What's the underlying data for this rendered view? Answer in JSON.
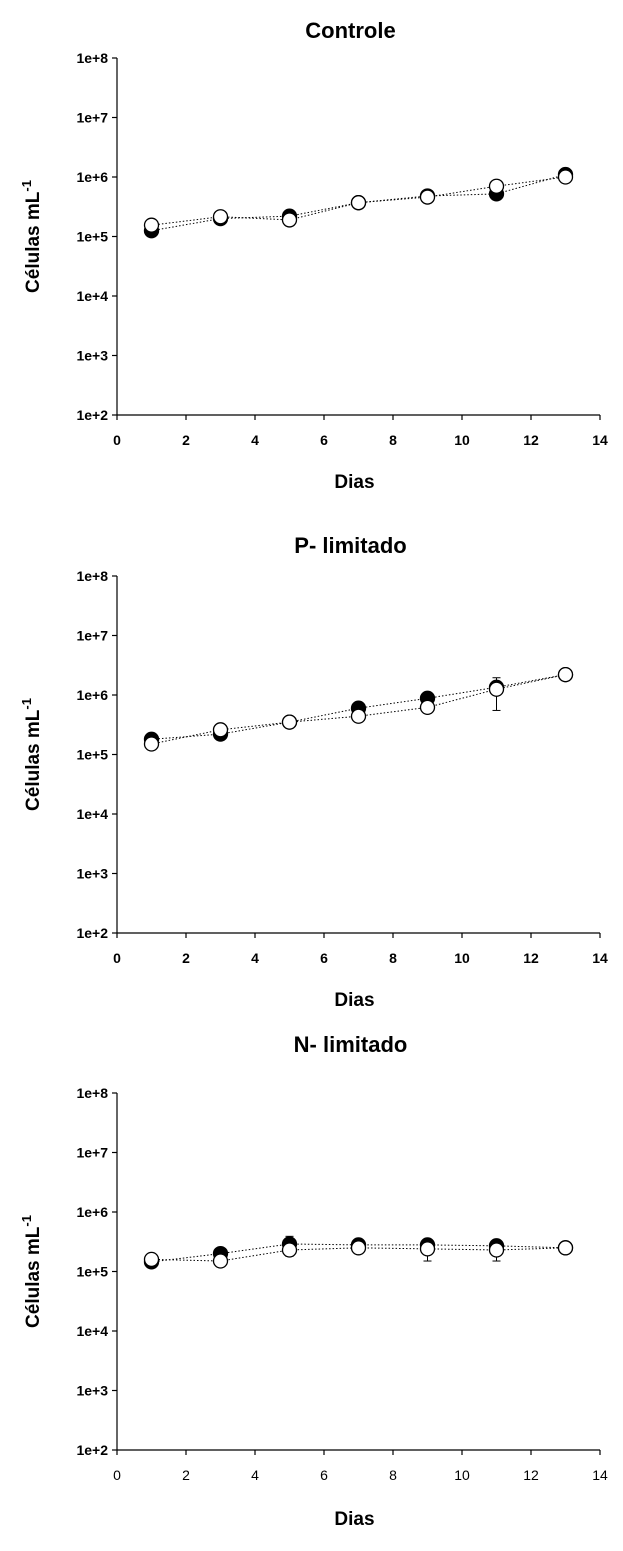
{
  "chart_data": [
    {
      "type": "scatter",
      "title": "Controle",
      "xlabel": "Dias",
      "ylabel": "Células mL",
      "ylabel_superscript": "-1",
      "xlim": [
        0,
        14
      ],
      "ylim": [
        100,
        100000000
      ],
      "yscale": "log",
      "x_ticks": [
        "0",
        "2",
        "4",
        "6",
        "8",
        "10",
        "12",
        "14"
      ],
      "y_ticks": [
        "1e+2",
        "1e+3",
        "1e+4",
        "1e+5",
        "1e+6",
        "1e+7",
        "1e+8"
      ],
      "series": [
        {
          "marker": "filled-circle",
          "x": [
            1,
            3,
            5,
            7,
            9,
            11,
            13
          ],
          "y": [
            125000,
            200000,
            220000,
            370000,
            480000,
            520000,
            1100000
          ],
          "err": [
            0,
            0,
            0,
            0,
            0,
            0,
            0
          ]
        },
        {
          "marker": "open-circle",
          "x": [
            1,
            3,
            5,
            7,
            9,
            11,
            13
          ],
          "y": [
            155000,
            215000,
            190000,
            370000,
            460000,
            700000,
            1000000
          ],
          "err": [
            0,
            0,
            0,
            0,
            0,
            0,
            0
          ]
        }
      ]
    },
    {
      "type": "scatter",
      "title": "P- limitado",
      "xlabel": "Dias",
      "ylabel": "Células mL",
      "ylabel_superscript": "-1",
      "xlim": [
        0,
        14
      ],
      "ylim": [
        100,
        100000000
      ],
      "yscale": "log",
      "x_ticks": [
        "0",
        "2",
        "4",
        "6",
        "8",
        "10",
        "12",
        "14"
      ],
      "y_ticks": [
        "1e+2",
        "1e+3",
        "1e+4",
        "1e+5",
        "1e+6",
        "1e+7",
        "1e+8"
      ],
      "series": [
        {
          "marker": "filled-circle",
          "x": [
            1,
            3,
            5,
            7,
            9,
            11,
            13
          ],
          "y": [
            180000,
            220000,
            350000,
            600000,
            880000,
            1350000,
            2200000
          ],
          "err": [
            0,
            0,
            0,
            0,
            0,
            0,
            0
          ]
        },
        {
          "marker": "open-circle",
          "x": [
            1,
            3,
            5,
            7,
            9,
            11,
            13
          ],
          "y": [
            150000,
            260000,
            350000,
            440000,
            620000,
            1250000,
            2200000
          ],
          "err": [
            0,
            0,
            0,
            0,
            0,
            700000,
            0
          ]
        }
      ]
    },
    {
      "type": "scatter",
      "title": "N- limitado",
      "xlabel": "Dias",
      "ylabel": "Células mL",
      "ylabel_superscript": "-1",
      "xlim": [
        0,
        14
      ],
      "ylim": [
        100,
        100000000
      ],
      "yscale": "log",
      "x_ticks": [
        "0",
        "2",
        "4",
        "6",
        "8",
        "10",
        "12",
        "14"
      ],
      "y_ticks": [
        "1e+2",
        "1e+3",
        "1e+4",
        "1e+5",
        "1e+6",
        "1e+7",
        "1e+8"
      ],
      "series": [
        {
          "marker": "filled-circle",
          "x": [
            1,
            3,
            5,
            7,
            9,
            11,
            13
          ],
          "y": [
            145000,
            200000,
            290000,
            280000,
            280000,
            270000,
            250000
          ],
          "err": [
            0,
            40000,
            100000,
            0,
            0,
            50000,
            40000
          ]
        },
        {
          "marker": "open-circle",
          "x": [
            1,
            3,
            5,
            7,
            9,
            11,
            13
          ],
          "y": [
            160000,
            150000,
            230000,
            250000,
            240000,
            230000,
            250000
          ],
          "err": [
            0,
            0,
            50000,
            0,
            90000,
            80000,
            0
          ]
        }
      ]
    }
  ]
}
